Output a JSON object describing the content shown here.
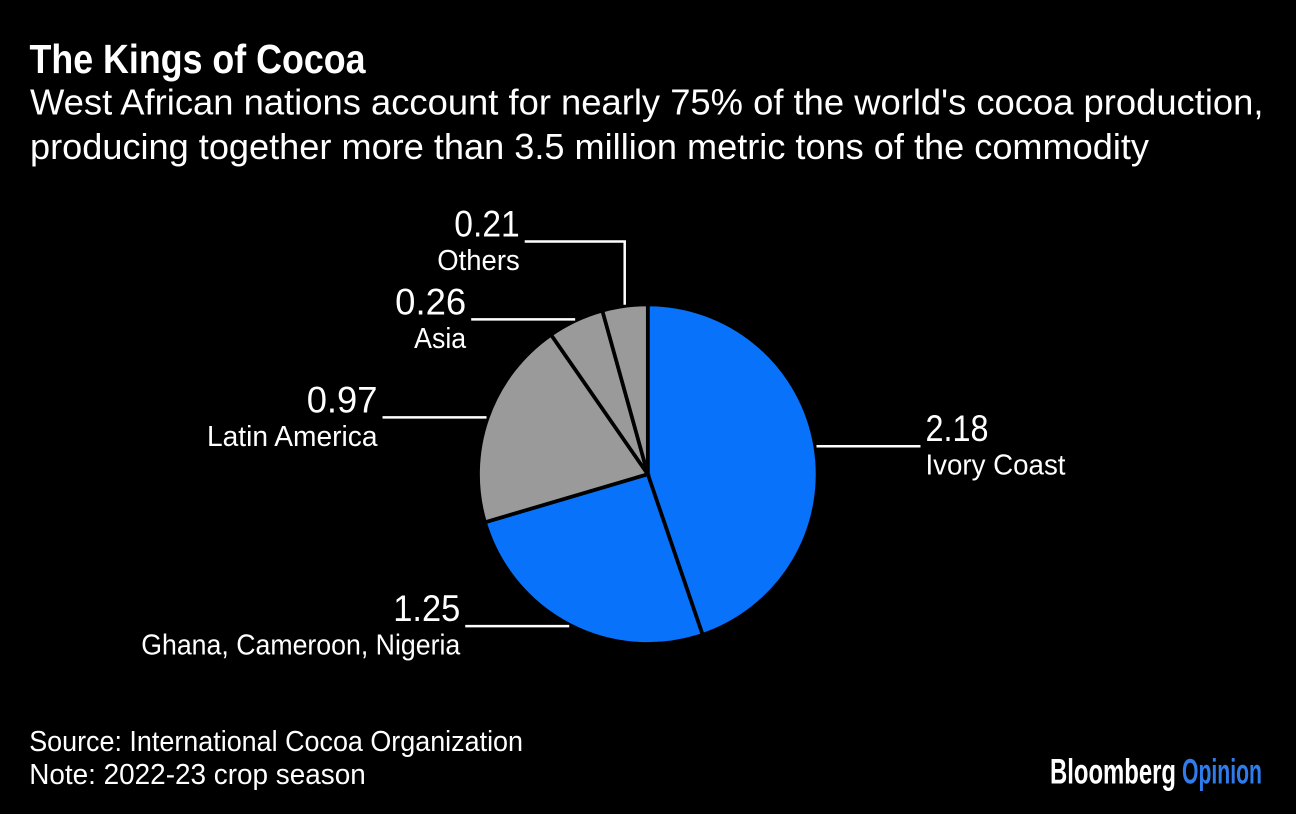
{
  "title": "The Kings of Cocoa",
  "subtitle_lines": [
    "West African nations account for nearly 75% of the world's cocoa production,",
    "producing together more than 3.5 million metric tons of the commodity"
  ],
  "footer": {
    "source": "Source: International Cocoa Organization",
    "note": "Note: 2022-23 crop season"
  },
  "logo": {
    "brand": "Bloomberg",
    "edition": "Opinion"
  },
  "colors": {
    "background": "#000000",
    "text": "#ffffff",
    "blue": "#0872fa",
    "gray": "#9a9a9a",
    "logo_blue": "#2f7ded",
    "slice_divider": "#000000",
    "leader_line": "#ffffff"
  },
  "chart_data": {
    "type": "pie",
    "title": "The Kings of Cocoa",
    "direction": "clockwise",
    "start_angle_deg": 0,
    "legend": "none",
    "slices": [
      {
        "label": "Ivory Coast",
        "value": 2.18,
        "value_label": "2.18",
        "color_key": "blue"
      },
      {
        "label": "Ghana, Cameroon, Nigeria",
        "value": 1.25,
        "value_label": "1.25",
        "color_key": "blue"
      },
      {
        "label": "Latin America",
        "value": 0.97,
        "value_label": "0.97",
        "color_key": "gray"
      },
      {
        "label": "Asia",
        "value": 0.26,
        "value_label": "0.26",
        "color_key": "gray"
      },
      {
        "label": "Others",
        "value": 0.21,
        "value_label": "0.21",
        "color_key": "gray"
      }
    ]
  }
}
